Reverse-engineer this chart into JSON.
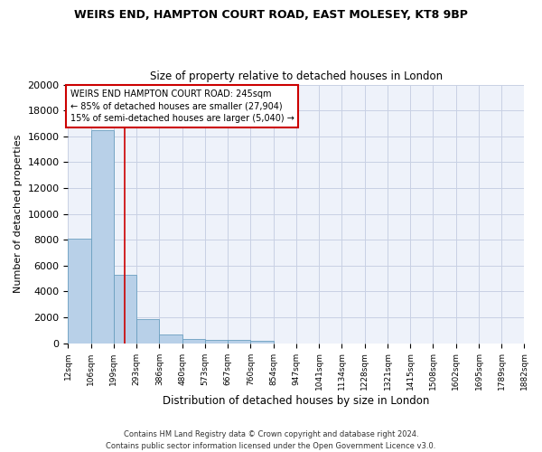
{
  "title": "WEIRS END, HAMPTON COURT ROAD, EAST MOLESEY, KT8 9BP",
  "subtitle": "Size of property relative to detached houses in London",
  "xlabel": "Distribution of detached houses by size in London",
  "ylabel": "Number of detached properties",
  "bar_color": "#b8d0e8",
  "bar_edge_color": "#6a9fc0",
  "background_color": "#eef2fa",
  "grid_color": "#c8d0e4",
  "vline_color": "#cc0000",
  "vline_x": 245,
  "annotation_text": "WEIRS END HAMPTON COURT ROAD: 245sqm\n← 85% of detached houses are smaller (27,904)\n15% of semi-detached houses are larger (5,040) →",
  "annotation_box_color": "white",
  "annotation_box_edge_color": "#cc0000",
  "footer_line1": "Contains HM Land Registry data © Crown copyright and database right 2024.",
  "footer_line2": "Contains public sector information licensed under the Open Government Licence v3.0.",
  "bin_edges": [
    12,
    106,
    199,
    293,
    386,
    480,
    573,
    667,
    760,
    854,
    947,
    1041,
    1134,
    1228,
    1321,
    1415,
    1508,
    1602,
    1695,
    1789,
    1882
  ],
  "bar_heights": [
    8100,
    16500,
    5300,
    1850,
    700,
    350,
    280,
    220,
    190,
    0,
    0,
    0,
    0,
    0,
    0,
    0,
    0,
    0,
    0,
    0
  ],
  "ylim": [
    0,
    20000
  ],
  "yticks": [
    0,
    2000,
    4000,
    6000,
    8000,
    10000,
    12000,
    14000,
    16000,
    18000,
    20000
  ]
}
